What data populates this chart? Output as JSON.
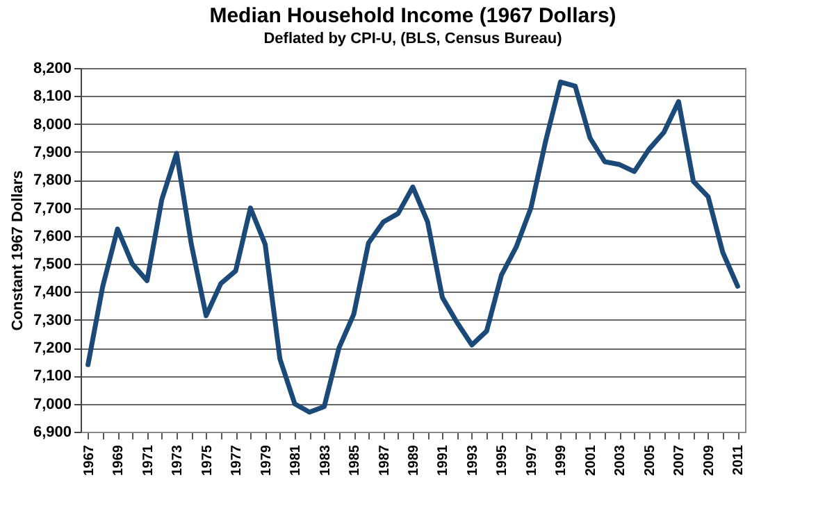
{
  "chart_data": {
    "type": "line",
    "title": "Median Household Income (1967 Dollars)",
    "subtitle": "Deflated by CPI-U, (BLS, Census Bureau)",
    "ylabel": "Constant 1967 Dollars",
    "categories": [
      "1967",
      null,
      "1969",
      null,
      "1971",
      null,
      "1973",
      null,
      "1975",
      null,
      "1977",
      null,
      "1979",
      null,
      "1981",
      null,
      "1983",
      null,
      "1985",
      null,
      "1987",
      null,
      "1989",
      null,
      "1991",
      null,
      "1993",
      null,
      "1995",
      null,
      "1997",
      null,
      "1999",
      null,
      "2001",
      null,
      "2003",
      null,
      "2005",
      null,
      "2007",
      null,
      "2009",
      null,
      "2011"
    ],
    "series": [
      {
        "color": "#1b4a78",
        "values": [
          7140,
          7420,
          7625,
          7500,
          7440,
          7730,
          7895,
          7570,
          7315,
          7430,
          7475,
          7700,
          7570,
          7160,
          7000,
          6970,
          6990,
          7200,
          7320,
          7575,
          7650,
          7680,
          7775,
          7650,
          7380,
          7290,
          7210,
          7260,
          7460,
          7560,
          7700,
          7940,
          8150,
          8135,
          7950,
          7865,
          7855,
          7830,
          7910,
          7970,
          8080,
          7795,
          7740,
          7540,
          7420
        ]
      }
    ],
    "ylim": [
      6900,
      8200
    ],
    "yticks": [
      {
        "value": 6900,
        "label": "6,900"
      },
      {
        "value": 7000,
        "label": "7,000"
      },
      {
        "value": 7100,
        "label": "7,100"
      },
      {
        "value": 7200,
        "label": "7,200"
      },
      {
        "value": 7300,
        "label": "7,300"
      },
      {
        "value": 7400,
        "label": "7,400"
      },
      {
        "value": 7500,
        "label": "7,500"
      },
      {
        "value": 7600,
        "label": "7,600"
      },
      {
        "value": 7700,
        "label": "7,700"
      },
      {
        "value": 7800,
        "label": "7,800"
      },
      {
        "value": 7900,
        "label": "7,900"
      },
      {
        "value": 8000,
        "label": "8,000"
      },
      {
        "value": 8100,
        "label": "8,100"
      },
      {
        "value": 8200,
        "label": "8,200"
      }
    ],
    "grid": "y",
    "line_style": "solid"
  }
}
